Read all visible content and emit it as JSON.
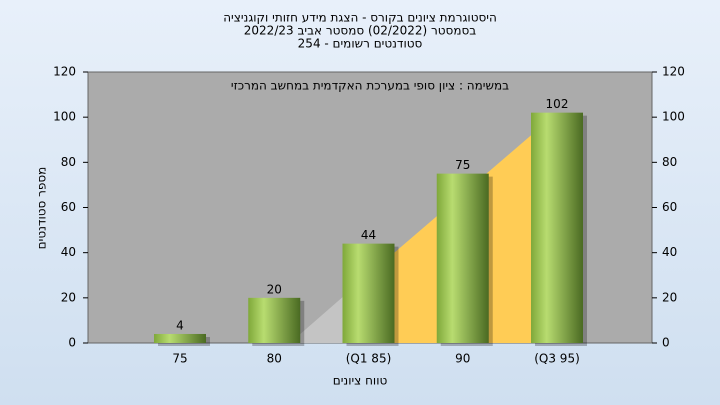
{
  "chart_data": {
    "type": "bar",
    "title": "היסטוגרמת ציונים בקורס - הצגת מידע חזותי וקוגניציה",
    "subtitle": "בסמסטר  (02/2022)  סמסטר אביב 2022/23",
    "subtitle2": "סטודנטים רשומים - 254",
    "annotation": "במשימה : ציון סופי במערכת האקדמית במחשב המרכזי",
    "x_label": "טווח ציונים",
    "y_label": "מספר סטודנטים",
    "categories": [
      "75",
      "80",
      "(Q1 85)",
      "90",
      "(Q3 95)"
    ],
    "values": [
      4,
      20,
      44,
      75,
      102
    ],
    "ylim": [
      0,
      120
    ],
    "yticks": [
      0,
      20,
      40,
      60,
      80,
      100,
      120
    ],
    "y2lim": [
      0,
      120
    ],
    "y2ticks": [
      0,
      20,
      40,
      60,
      80,
      100,
      120
    ]
  }
}
